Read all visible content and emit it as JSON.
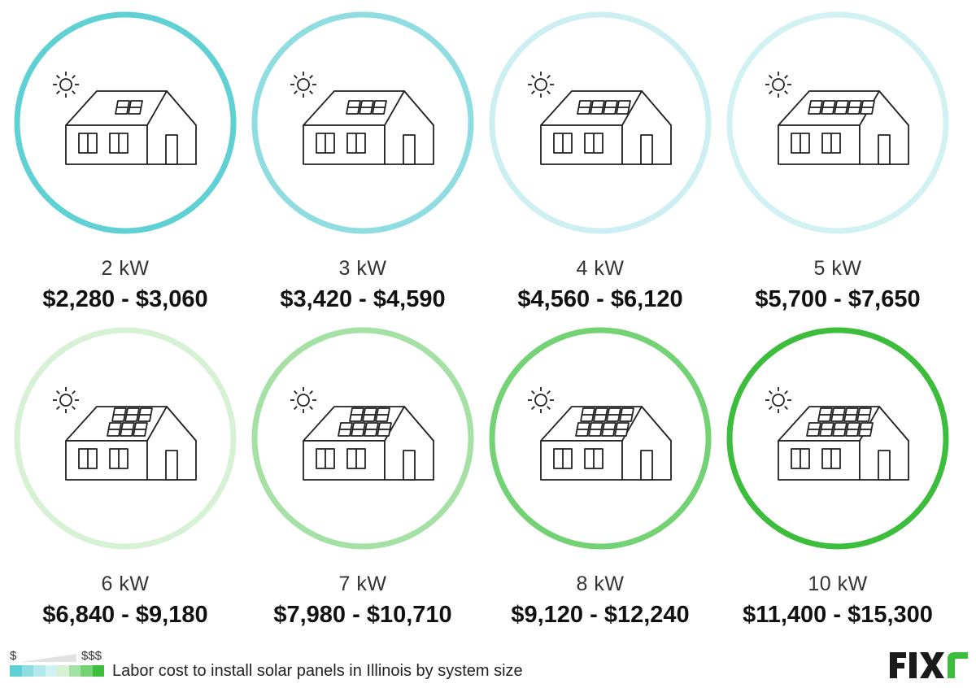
{
  "cards": [
    {
      "size": "2 kW",
      "price": "$2,280 - $3,060",
      "ring_color": "#5fd0d3",
      "panels_top": 2,
      "panels_bottom": 0
    },
    {
      "size": "3 kW",
      "price": "$3,420 - $4,590",
      "ring_color": "#8fdde0",
      "panels_top": 3,
      "panels_bottom": 0
    },
    {
      "size": "4 kW",
      "price": "$4,560 - $6,120",
      "ring_color": "#cdeff1",
      "panels_top": 4,
      "panels_bottom": 0
    },
    {
      "size": "5 kW",
      "price": "$5,700 - $7,650",
      "ring_color": "#d2f1f2",
      "panels_top": 5,
      "panels_bottom": 0
    },
    {
      "size": "6 kW",
      "price": "$6,840 - $9,180",
      "ring_color": "#d6f1d4",
      "panels_top": 3,
      "panels_bottom": 3
    },
    {
      "size": "7 kW",
      "price": "$7,980 - $10,710",
      "ring_color": "#a5e0a4",
      "panels_top": 3,
      "panels_bottom": 4
    },
    {
      "size": "8 kW",
      "price": "$9,120 - $12,240",
      "ring_color": "#73d273",
      "panels_top": 4,
      "panels_bottom": 4
    },
    {
      "size": "10 kW",
      "price": "$11,400 - $15,300",
      "ring_color": "#3cbd3c",
      "panels_top": 4,
      "panels_bottom": 5
    }
  ],
  "legend": {
    "low_label": "$",
    "high_label": "$$$",
    "scale_colors": [
      "#5fd0d3",
      "#8fdde0",
      "#b4e9eb",
      "#d2f1f2",
      "#d6f1d4",
      "#a5e0a4",
      "#73d273",
      "#3cbd3c"
    ]
  },
  "caption": "Labor cost to install solar panels in Illinois by system size",
  "logo": {
    "text": "FIXR",
    "color": "#1a1a1a",
    "accent": "#3cbd3c"
  }
}
